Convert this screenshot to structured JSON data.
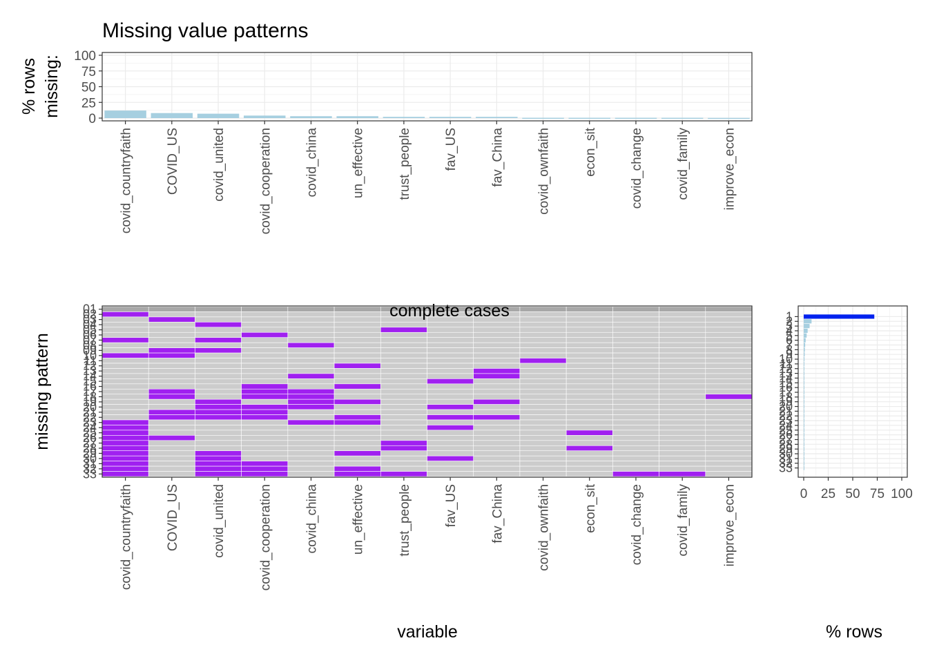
{
  "chart_data": [
    {
      "type": "bar",
      "title": "Missing value patterns",
      "ylabel_lines": [
        "% rows",
        "missing:"
      ],
      "ylim": [
        0,
        100
      ],
      "yticks": [
        "0",
        "25",
        "50",
        "75",
        "100"
      ],
      "categories": [
        "covid_countryfaith",
        "COVID_US",
        "covid_united",
        "covid_cooperation",
        "covid_china",
        "un_effective",
        "trust_people",
        "fav_US",
        "fav_China",
        "covid_ownfaith",
        "econ_sit",
        "covid_change",
        "covid_family",
        "improve_econ"
      ],
      "values": [
        12,
        8,
        7,
        4,
        3,
        3,
        2,
        2,
        2,
        0.5,
        0.5,
        0.5,
        0.5,
        0.3
      ],
      "colors": {
        "bar": "#a6cfe0"
      },
      "grid": true
    },
    {
      "type": "heatmap",
      "xlabel": "variable",
      "ylabel": "missing pattern",
      "annotation": "complete cases",
      "columns": [
        "covid_countryfaith",
        "COVID_US",
        "covid_united",
        "covid_cooperation",
        "covid_china",
        "un_effective",
        "trust_people",
        "fav_US",
        "fav_China",
        "covid_ownfaith",
        "econ_sit",
        "covid_change",
        "covid_family",
        "improve_econ"
      ],
      "pattern_labels": [
        "01",
        "02",
        "03",
        "04",
        "05",
        "06",
        "07",
        "08",
        "09",
        "10",
        "11",
        "12",
        "13",
        "14",
        "15",
        "16",
        "17",
        "18",
        "19",
        "20",
        "21",
        "22",
        "23",
        "24",
        "25",
        "26",
        "27",
        "28",
        "29",
        "30",
        "31",
        "32",
        "33"
      ],
      "missing_cells": [
        [],
        [
          0
        ],
        [
          1
        ],
        [
          2
        ],
        [
          6
        ],
        [
          3
        ],
        [
          0,
          2
        ],
        [
          4
        ],
        [
          1,
          2
        ],
        [
          0,
          1
        ],
        [
          9
        ],
        [
          5
        ],
        [
          8
        ],
        [
          4,
          8
        ],
        [
          7
        ],
        [
          3,
          5
        ],
        [
          1,
          3,
          4
        ],
        [
          1,
          3,
          4,
          13
        ],
        [
          2,
          4,
          5,
          8
        ],
        [
          2,
          3,
          4,
          7
        ],
        [
          1,
          2,
          3
        ],
        [
          1,
          2,
          3,
          5,
          7,
          8
        ],
        [
          0,
          4,
          5
        ],
        [
          0,
          7
        ],
        [
          0,
          10
        ],
        [
          0,
          1
        ],
        [
          0,
          6
        ],
        [
          0,
          6,
          10
        ],
        [
          0,
          2,
          5
        ],
        [
          0,
          2,
          7
        ],
        [
          0,
          2,
          3
        ],
        [
          0,
          2,
          3,
          5
        ],
        [
          0,
          2,
          3,
          5,
          6,
          11,
          12
        ]
      ],
      "colors": {
        "missing": "#a020f0",
        "present": "#cccccc",
        "complete": "#a8a8a8"
      }
    },
    {
      "type": "bar",
      "orientation": "horizontal",
      "xlabel": "% rows",
      "xlim": [
        0,
        100
      ],
      "xticks": [
        "0",
        "25",
        "50",
        "75",
        "100"
      ],
      "ytick_labels": [
        "1",
        "2",
        "3",
        "4",
        "5",
        "6",
        "7",
        "8",
        "9",
        "10",
        "11",
        "12",
        "13",
        "14",
        "15",
        "16",
        "17",
        "18",
        "19",
        "20",
        "21",
        "22",
        "23",
        "24",
        "25",
        "26",
        "27",
        "28",
        "29",
        "30",
        "31",
        "32",
        "33"
      ],
      "values": [
        72,
        8,
        6,
        4,
        3,
        2,
        1.5,
        1.2,
        1,
        0.8,
        0.7,
        0.6,
        0.5,
        0.5,
        0.4,
        0.4,
        0.3,
        0.3,
        0.3,
        0.3,
        0.2,
        0.2,
        0.2,
        0.2,
        0.2,
        0.2,
        0.1,
        0.1,
        0.1,
        0.1,
        0.1,
        0.1,
        0.1
      ],
      "colors": {
        "highlight": "#0022ee",
        "bar": "#a6cfe0"
      },
      "highlight_index": 0
    }
  ]
}
